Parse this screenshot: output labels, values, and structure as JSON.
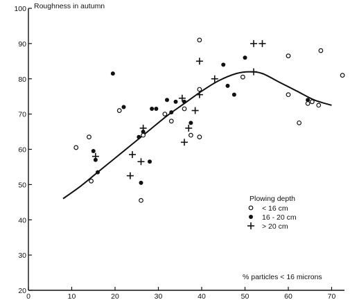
{
  "chart_data": {
    "type": "scatter",
    "title": "",
    "ylabel": "Roughness in autumn",
    "xlabel": "% particles < 16 microns",
    "xlim": [
      0,
      72
    ],
    "ylim": [
      20,
      100
    ],
    "x_ticks": [
      "0",
      "10",
      "20",
      "30",
      "40",
      "50",
      "60",
      "70"
    ],
    "y_ticks": [
      "20",
      "30",
      "40",
      "50",
      "60",
      "70",
      "80",
      "90",
      "100"
    ],
    "grid": false,
    "legend": {
      "title": "Plowing depth",
      "placement": "lower-right"
    },
    "series": [
      {
        "name": "< 16 cm",
        "marker": "open-circle",
        "points": [
          [
            11,
            60.5
          ],
          [
            14,
            63.5
          ],
          [
            14.5,
            51
          ],
          [
            21,
            71
          ],
          [
            26,
            45.5
          ],
          [
            26.5,
            64
          ],
          [
            31.5,
            70
          ],
          [
            33,
            68
          ],
          [
            36,
            71.5
          ],
          [
            37.5,
            64
          ],
          [
            39.5,
            91
          ],
          [
            39.5,
            77
          ],
          [
            39.5,
            63.5
          ],
          [
            49.5,
            80.5
          ],
          [
            60,
            86.5
          ],
          [
            60,
            75.5
          ],
          [
            62.5,
            67.5
          ],
          [
            64.5,
            73
          ],
          [
            65.5,
            73.5
          ],
          [
            67,
            72.5
          ],
          [
            67.5,
            88
          ],
          [
            72.5,
            81
          ]
        ]
      },
      {
        "name": "16 - 20 cm",
        "marker": "filled-circle",
        "points": [
          [
            15,
            59.5
          ],
          [
            15.5,
            57
          ],
          [
            16,
            53.5
          ],
          [
            19.5,
            81.5
          ],
          [
            22,
            72
          ],
          [
            25.5,
            63.5
          ],
          [
            26,
            50.5
          ],
          [
            26.5,
            65
          ],
          [
            28,
            56.5
          ],
          [
            28.5,
            71.5
          ],
          [
            29.5,
            71.5
          ],
          [
            32,
            74
          ],
          [
            33,
            70.5
          ],
          [
            34,
            73.5
          ],
          [
            36,
            73.5
          ],
          [
            37.5,
            67.5
          ],
          [
            45,
            84
          ],
          [
            46,
            78
          ],
          [
            47.5,
            75.5
          ],
          [
            50,
            86
          ],
          [
            64.5,
            74
          ]
        ]
      },
      {
        "name": "> 20 cm",
        "marker": "plus",
        "points": [
          [
            15.5,
            58
          ],
          [
            23.5,
            52.5
          ],
          [
            24,
            58.5
          ],
          [
            26,
            56.5
          ],
          [
            26.5,
            66
          ],
          [
            35.5,
            74.5
          ],
          [
            36,
            62
          ],
          [
            37,
            66
          ],
          [
            38.5,
            71
          ],
          [
            39.5,
            75.5
          ],
          [
            39.5,
            85
          ],
          [
            43,
            80
          ],
          [
            52,
            90
          ],
          [
            54,
            90
          ],
          [
            52,
            82
          ]
        ]
      }
    ],
    "fit_curve": {
      "marker": "line",
      "points": [
        [
          8,
          46
        ],
        [
          12,
          49.5
        ],
        [
          16,
          53.5
        ],
        [
          20,
          57.5
        ],
        [
          24,
          61.5
        ],
        [
          28,
          65.5
        ],
        [
          32,
          69.5
        ],
        [
          36,
          73
        ],
        [
          40,
          76.5
        ],
        [
          44,
          79.5
        ],
        [
          48,
          81.5
        ],
        [
          51,
          82
        ],
        [
          54,
          81.5
        ],
        [
          58,
          79
        ],
        [
          62,
          76.5
        ],
        [
          66,
          74
        ],
        [
          70,
          72.5
        ]
      ]
    }
  }
}
